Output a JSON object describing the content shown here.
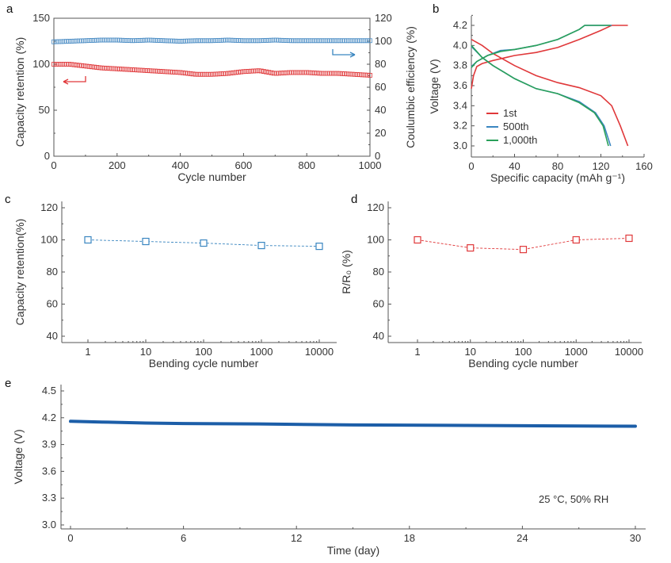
{
  "chart_data": [
    {
      "panel": "a",
      "type": "scatter",
      "xlabel": "Cycle number",
      "ylabel": "Capacity retention (%)",
      "ylabel_right": "Coulumbic efficiency (%)",
      "xlim": [
        0,
        1000
      ],
      "ylim": [
        0,
        150
      ],
      "ylim_right": [
        0,
        120
      ],
      "xticks": [
        "0",
        "200",
        "400",
        "600",
        "800",
        "1000"
      ],
      "yticks": [
        "0",
        "50",
        "100",
        "150"
      ],
      "yticks_right": [
        "0",
        "20",
        "40",
        "60",
        "80",
        "100",
        "120"
      ],
      "grid": false,
      "series": [
        {
          "axis": "left",
          "color": "#e0383a",
          "marker": "open-square",
          "x": [
            0,
            50,
            100,
            150,
            200,
            250,
            300,
            350,
            400,
            450,
            500,
            550,
            600,
            650,
            700,
            750,
            800,
            850,
            900,
            950,
            1000
          ],
          "y": [
            100,
            100,
            98,
            96,
            95,
            94,
            93,
            92,
            91,
            89,
            89,
            90,
            92,
            93,
            90,
            91,
            91,
            90,
            90,
            89,
            88
          ]
        },
        {
          "axis": "right",
          "color": "#4a8cc4",
          "marker": "open-square",
          "x": [
            0,
            50,
            100,
            150,
            200,
            250,
            300,
            350,
            400,
            450,
            500,
            550,
            600,
            650,
            700,
            750,
            800,
            850,
            900,
            950,
            1000
          ],
          "y": [
            99.5,
            100,
            100.5,
            101,
            101,
            100.5,
            101,
            100.5,
            100,
            100.5,
            100.5,
            101,
            100.5,
            100.5,
            101,
            100.5,
            100.5,
            100.5,
            100.5,
            100.5,
            100.5
          ]
        }
      ],
      "annotations": [
        "arrow-left-to-left-axis (red)",
        "arrow-right-to-right-axis (blue)"
      ]
    },
    {
      "panel": "b",
      "type": "line",
      "xlabel": "Specific capacity (mAh g⁻¹)",
      "ylabel": "Voltage (V)",
      "xlim": [
        0,
        160
      ],
      "ylim": [
        3.0,
        4.3
      ],
      "xticks": [
        "0",
        "40",
        "80",
        "120",
        "160"
      ],
      "yticks": [
        "3.0",
        "3.2",
        "3.4",
        "3.6",
        "3.8",
        "4.0",
        "4.2"
      ],
      "legend": "bottom-left",
      "grid": false,
      "series": [
        {
          "name": "1st",
          "color": "#e0383a",
          "charge": [
            [
              0,
              3.57
            ],
            [
              2,
              3.7
            ],
            [
              5,
              3.79
            ],
            [
              10,
              3.82
            ],
            [
              20,
              3.85
            ],
            [
              40,
              3.9
            ],
            [
              60,
              3.93
            ],
            [
              80,
              3.98
            ],
            [
              100,
              4.06
            ],
            [
              120,
              4.15
            ],
            [
              130,
              4.2
            ],
            [
              145,
              4.2
            ]
          ],
          "discharge": [
            [
              0,
              4.06
            ],
            [
              10,
              4.0
            ],
            [
              20,
              3.92
            ],
            [
              40,
              3.8
            ],
            [
              60,
              3.7
            ],
            [
              80,
              3.63
            ],
            [
              100,
              3.58
            ],
            [
              120,
              3.5
            ],
            [
              130,
              3.4
            ],
            [
              138,
              3.2
            ],
            [
              145,
              3.0
            ]
          ]
        },
        {
          "name": "500th",
          "color": "#3a86c0",
          "charge": [
            [
              0,
              3.79
            ],
            [
              5,
              3.84
            ],
            [
              15,
              3.9
            ],
            [
              27,
              3.95
            ],
            [
              40,
              3.96
            ],
            [
              60,
              4.0
            ],
            [
              80,
              4.06
            ],
            [
              100,
              4.16
            ],
            [
              105,
              4.2
            ],
            [
              130,
              4.2
            ]
          ],
          "discharge": [
            [
              0,
              3.99
            ],
            [
              10,
              3.88
            ],
            [
              20,
              3.8
            ],
            [
              40,
              3.67
            ],
            [
              60,
              3.57
            ],
            [
              80,
              3.52
            ],
            [
              100,
              3.44
            ],
            [
              115,
              3.33
            ],
            [
              123,
              3.2
            ],
            [
              129,
              3.0
            ]
          ]
        },
        {
          "name": "1,000th",
          "color": "#2aa05a",
          "charge": [
            [
              0,
              3.78
            ],
            [
              5,
              3.84
            ],
            [
              15,
              3.9
            ],
            [
              27,
              3.94
            ],
            [
              40,
              3.96
            ],
            [
              60,
              4.0
            ],
            [
              80,
              4.06
            ],
            [
              100,
              4.16
            ],
            [
              105,
              4.2
            ],
            [
              129,
              4.2
            ]
          ],
          "discharge": [
            [
              0,
              4.0
            ],
            [
              10,
              3.88
            ],
            [
              20,
              3.8
            ],
            [
              40,
              3.67
            ],
            [
              60,
              3.57
            ],
            [
              80,
              3.52
            ],
            [
              100,
              3.43
            ],
            [
              114,
              3.33
            ],
            [
              122,
              3.2
            ],
            [
              127,
              3.0
            ]
          ]
        }
      ]
    },
    {
      "panel": "c",
      "type": "line",
      "xlabel": "Bending cycle number",
      "ylabel": "Capacity retention(%)",
      "xscale": "log",
      "ylim": [
        40,
        120
      ],
      "xticks": [
        "1",
        "10",
        "100",
        "1000",
        "10000"
      ],
      "yticks": [
        "40",
        "60",
        "80",
        "100",
        "120"
      ],
      "color": "#3a86c0",
      "marker": "open-square",
      "x": [
        1,
        10,
        100,
        1000,
        10000
      ],
      "y": [
        100,
        99,
        98,
        96.5,
        96
      ]
    },
    {
      "panel": "d",
      "type": "line",
      "xlabel": "Bending cycle number",
      "ylabel": "R/R₀ (%)",
      "xscale": "log",
      "ylim": [
        40,
        120
      ],
      "xticks": [
        "1",
        "10",
        "100",
        "1000",
        "10000"
      ],
      "yticks": [
        "40",
        "60",
        "80",
        "100",
        "120"
      ],
      "color": "#e0383a",
      "marker": "open-square",
      "x": [
        1,
        10,
        100,
        1000,
        10000
      ],
      "y": [
        100,
        95,
        94,
        100,
        101
      ]
    },
    {
      "panel": "e",
      "type": "line",
      "xlabel": "Time (day)",
      "ylabel": "Voltage (V)",
      "xlim": [
        0,
        30
      ],
      "ylim": [
        3.0,
        4.5
      ],
      "xticks": [
        "0",
        "6",
        "12",
        "18",
        "24",
        "30"
      ],
      "yticks": [
        "3.0",
        "3.3",
        "3.6",
        "3.9",
        "4.2",
        "4.5"
      ],
      "color": "#1c5ea8",
      "annotation": "25 °C, 50% RH",
      "x": [
        0,
        2,
        4,
        6,
        10,
        15,
        20,
        25,
        30
      ],
      "y": [
        4.16,
        4.15,
        4.14,
        4.135,
        4.13,
        4.12,
        4.115,
        4.11,
        4.105
      ]
    }
  ],
  "panel_labels": [
    "a",
    "b",
    "c",
    "d",
    "e"
  ]
}
